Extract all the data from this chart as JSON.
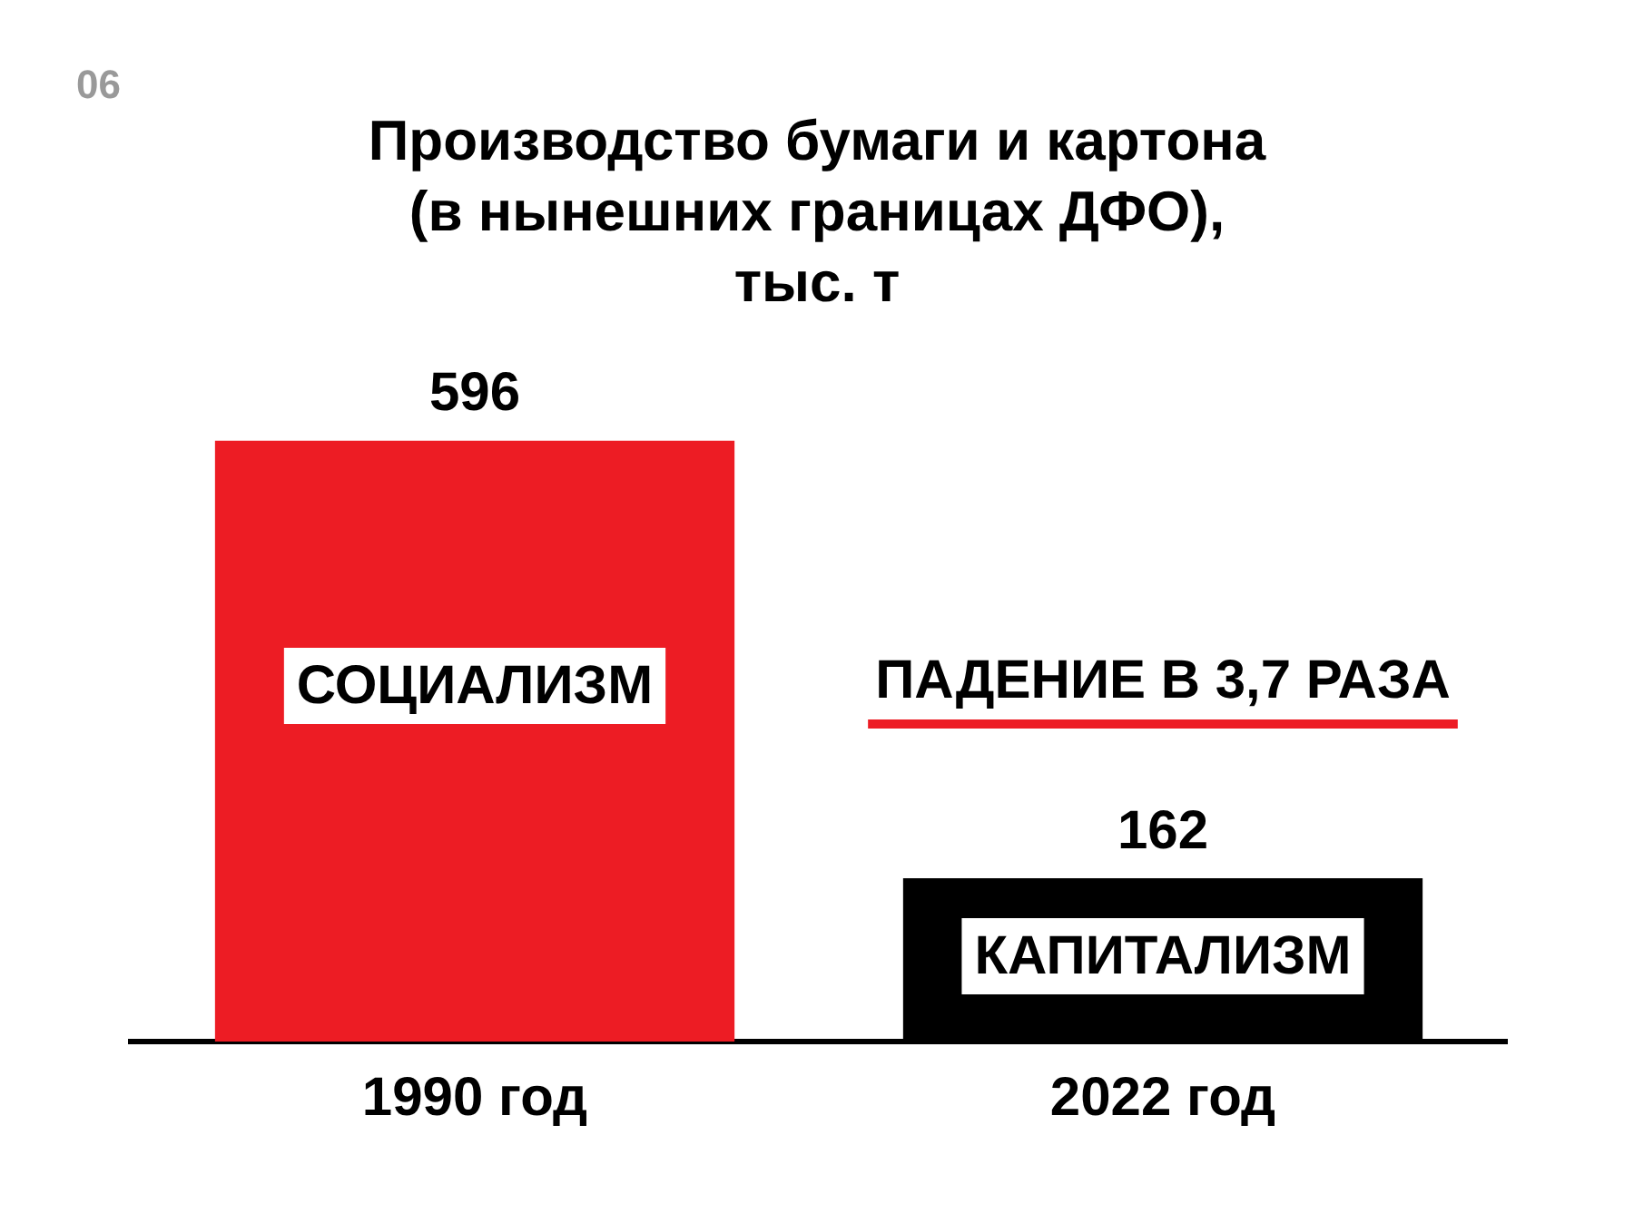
{
  "chart_data": {
    "type": "bar",
    "title": "Производство бумаги и картона (в нынешних границах ДФО), тыс. т",
    "categories": [
      "1990 год",
      "2022 год"
    ],
    "values": [
      596,
      162
    ],
    "colors": [
      "#ed1c24",
      "#000000"
    ],
    "data_labels": true,
    "annotations": [
      "06",
      "СОЦИАЛИЗМ",
      "ПАДЕНИЕ В 3,7 РАЗА",
      "КАПИТАЛИЗМ"
    ]
  }
}
